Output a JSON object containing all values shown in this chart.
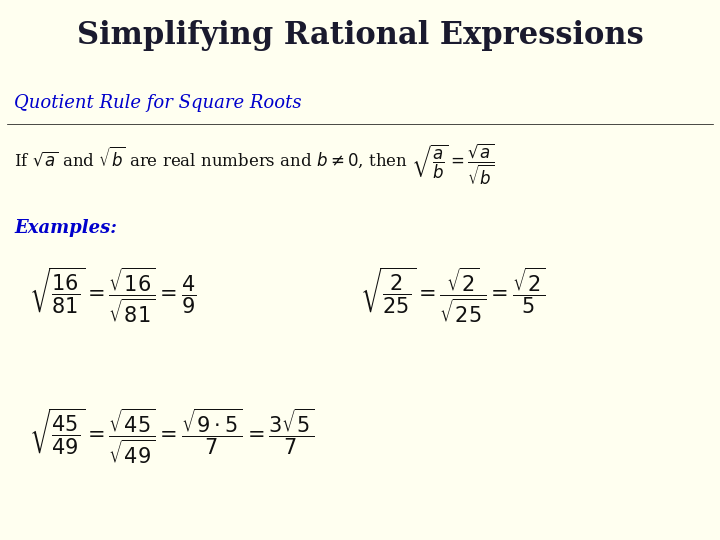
{
  "title": "Simplifying Rational Expressions",
  "title_bg": "#1ab2e8",
  "title_color": "#1a1a2e",
  "body_bg": "#fffff0",
  "subtitle_color": "#0000cc",
  "subtitle": "Quotient Rule for Square Roots",
  "body_text_color": "#1a1a1a",
  "fig_width": 7.2,
  "fig_height": 5.4,
  "dpi": 100
}
